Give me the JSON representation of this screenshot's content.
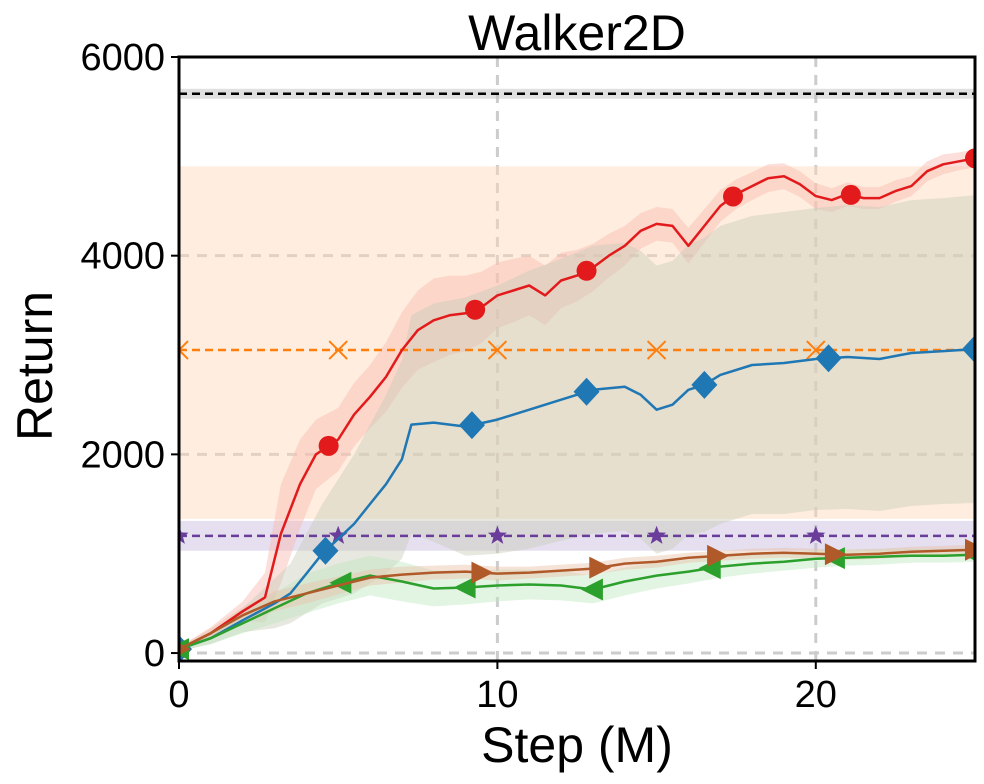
{
  "chart_data": {
    "type": "line",
    "title": "Walker2D",
    "xlabel": "Step (M)",
    "ylabel": "Return",
    "xlim": [
      0,
      25
    ],
    "ylim": [
      -80,
      6000
    ],
    "xticks": [
      0,
      10,
      20
    ],
    "yticks": [
      0,
      2000,
      4000,
      6000
    ],
    "xtick_labels": [
      "0",
      "10",
      "20"
    ],
    "ytick_labels": [
      "0",
      "2000",
      "4000",
      "6000"
    ],
    "grid": true,
    "horizontal_lines": [
      {
        "name": "upper-reference",
        "y": 5630,
        "color": "#000000",
        "dashed": true,
        "band": [
          5580,
          5680
        ],
        "band_color": "#bbbbbb",
        "marker": "none"
      },
      {
        "name": "orange-baseline",
        "y": 3050,
        "color": "#ff7f0e",
        "dashed": true,
        "band": [
          1350,
          4900
        ],
        "band_color": "#ffd9b8",
        "marker": "x",
        "marker_x": [
          0,
          5,
          10,
          15,
          20
        ]
      },
      {
        "name": "purple-baseline",
        "y": 1180,
        "color": "#6a3d9a",
        "dashed": true,
        "band": [
          1030,
          1330
        ],
        "band_color": "#c6b8dd",
        "marker": "star",
        "marker_x": [
          0,
          5,
          10,
          15,
          20
        ]
      }
    ],
    "series": [
      {
        "name": "red-method",
        "color": "#e31a1c",
        "marker": "circle",
        "x": [
          0,
          1,
          2,
          2.7,
          3.2,
          3.8,
          4.3,
          5,
          5.5,
          6,
          6.5,
          7,
          7.5,
          8,
          8.5,
          9,
          9.5,
          10,
          10.5,
          11,
          11.5,
          12,
          12.5,
          13,
          13.5,
          14,
          14.5,
          15,
          15.5,
          16,
          16.5,
          17,
          17.5,
          18,
          18.5,
          19,
          19.5,
          20,
          20.5,
          21,
          21.5,
          22,
          22.5,
          23,
          23.5,
          24,
          24.5,
          25
        ],
        "y": [
          40,
          200,
          420,
          560,
          1200,
          1700,
          2000,
          2150,
          2400,
          2580,
          2780,
          3050,
          3250,
          3350,
          3400,
          3420,
          3480,
          3600,
          3650,
          3700,
          3600,
          3750,
          3800,
          3880,
          4000,
          4100,
          4250,
          4320,
          4300,
          4100,
          4300,
          4500,
          4620,
          4700,
          4780,
          4800,
          4720,
          4600,
          4560,
          4620,
          4580,
          4580,
          4650,
          4700,
          4850,
          4920,
          4950,
          4980
        ],
        "band_width": [
          20,
          60,
          100,
          250,
          500,
          450,
          350,
          320,
          320,
          320,
          350,
          380,
          400,
          420,
          400,
          380,
          360,
          330,
          320,
          300,
          300,
          280,
          260,
          240,
          220,
          200,
          180,
          170,
          170,
          180,
          170,
          160,
          150,
          140,
          140,
          130,
          130,
          130,
          120,
          120,
          110,
          110,
          110,
          100,
          100,
          100,
          90,
          90
        ],
        "band_color": "#f8b8b0",
        "marker_x": [
          4.7,
          9.3,
          12.8,
          17.4,
          21.1,
          25
        ]
      },
      {
        "name": "blue-method",
        "color": "#1f77b4",
        "marker": "diamond",
        "x": [
          0,
          1,
          2,
          3,
          3.5,
          4,
          4.5,
          5,
          5.5,
          6,
          6.5,
          7,
          7.3,
          8,
          9,
          10,
          11,
          12,
          13,
          14,
          14.5,
          15,
          15.5,
          16,
          16.5,
          17,
          18,
          19,
          20,
          21,
          22,
          23,
          24,
          25
        ],
        "y": [
          40,
          150,
          330,
          500,
          600,
          800,
          1000,
          1150,
          1300,
          1500,
          1700,
          1950,
          2300,
          2320,
          2280,
          2350,
          2450,
          2550,
          2650,
          2680,
          2600,
          2450,
          2500,
          2650,
          2700,
          2800,
          2900,
          2920,
          2960,
          2980,
          2960,
          3020,
          3040,
          3060
        ],
        "band_width": [
          20,
          60,
          120,
          250,
          300,
          400,
          500,
          600,
          700,
          800,
          900,
          1000,
          1100,
          1200,
          1300,
          1350,
          1400,
          1420,
          1450,
          1450,
          1450,
          1450,
          1450,
          1460,
          1480,
          1500,
          1500,
          1520,
          1520,
          1530,
          1530,
          1540,
          1540,
          1550
        ],
        "band_color": "#c9ccbb",
        "marker_x": [
          0,
          4.6,
          9.2,
          12.8,
          16.5,
          20.4,
          25
        ]
      },
      {
        "name": "green-method",
        "color": "#2ca02c",
        "marker": "triangle-left",
        "x": [
          0,
          1,
          2,
          3,
          4,
          5,
          6,
          7,
          8,
          9,
          10,
          11,
          12,
          13,
          14,
          15,
          16,
          17,
          18,
          19,
          20,
          21,
          22,
          23,
          24,
          25
        ],
        "y": [
          40,
          150,
          300,
          450,
          600,
          700,
          780,
          720,
          650,
          660,
          680,
          690,
          680,
          640,
          720,
          780,
          820,
          870,
          900,
          920,
          950,
          960,
          970,
          980,
          980,
          990
        ],
        "band_width": [
          20,
          60,
          100,
          150,
          200,
          200,
          200,
          200,
          180,
          170,
          160,
          150,
          150,
          140,
          140,
          130,
          120,
          110,
          100,
          90,
          90,
          80,
          80,
          70,
          70,
          70
        ],
        "band_color": "#bfe6bf",
        "marker_x": [
          0,
          5.1,
          9,
          13,
          16.7,
          20.6,
          25
        ]
      },
      {
        "name": "brown-method",
        "color": "#b05a2a",
        "marker": "triangle-right",
        "x": [
          0,
          1,
          2,
          3,
          4,
          5,
          6,
          7,
          8,
          9,
          10,
          11,
          12,
          13,
          14,
          15,
          16,
          17,
          18,
          19,
          20,
          21,
          22,
          23,
          24,
          25
        ],
        "y": [
          40,
          200,
          380,
          520,
          600,
          680,
          760,
          790,
          810,
          820,
          800,
          810,
          830,
          850,
          900,
          920,
          960,
          980,
          1000,
          1010,
          1000,
          990,
          1000,
          1020,
          1030,
          1040
        ],
        "band_width": [
          20,
          50,
          80,
          100,
          100,
          90,
          80,
          80,
          70,
          70,
          70,
          60,
          60,
          60,
          60,
          60,
          50,
          50,
          50,
          50,
          50,
          50,
          50,
          50,
          50,
          50
        ],
        "band_color": "#e8c2a8",
        "marker_x": [
          0,
          9.5,
          13.2,
          16.9,
          20.6,
          25
        ]
      }
    ]
  }
}
